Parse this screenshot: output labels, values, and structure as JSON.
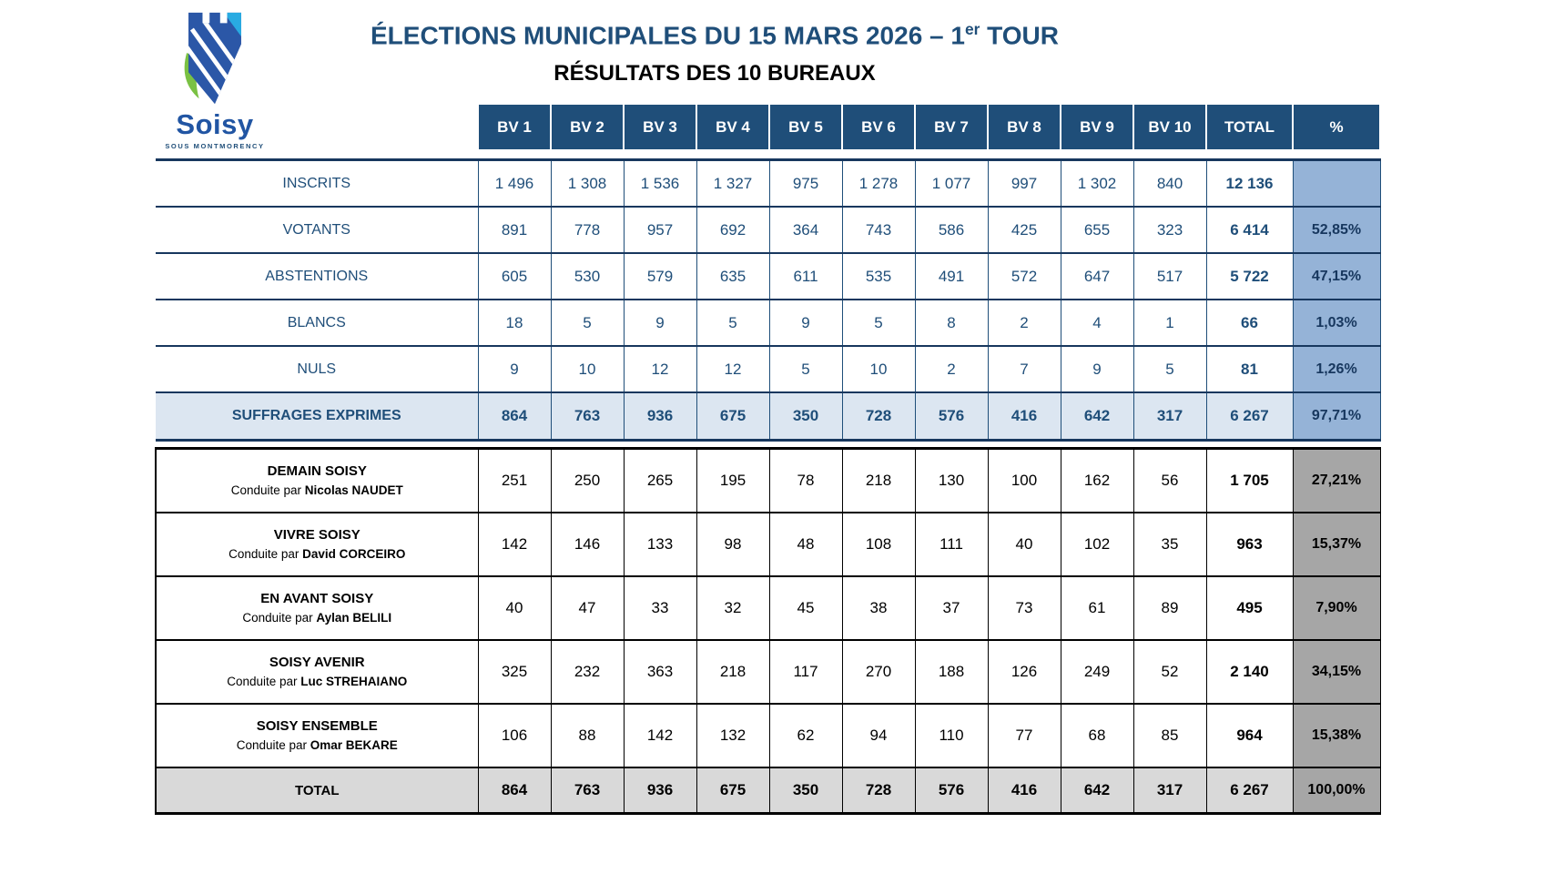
{
  "header": {
    "title_main": "ÉLECTIONS MUNICIPALES DU 15 MARS 2026 – 1",
    "title_sup": "er",
    "title_tail": " TOUR",
    "subtitle": "RÉSULTATS DES 10 BUREAUX"
  },
  "logo": {
    "name": "Soisy",
    "tagline": "SOUS MONTMORENCY",
    "colors": {
      "castle_blue": "#2B57A7",
      "accent_cyan": "#29ABE2",
      "leaf_green": "#7AC143",
      "wordmark_blue": "#2155A3"
    }
  },
  "colors": {
    "header_navy": "#1F4E79",
    "text_navy": "#17375E",
    "pct_blue": "#95B3D7",
    "suffrages_blue": "#DCE6F1",
    "pct_gray": "#A6A6A6",
    "total_gray": "#D9D9D9"
  },
  "table": {
    "columns": [
      "BV 1",
      "BV 2",
      "BV 3",
      "BV 4",
      "BV 5",
      "BV 6",
      "BV 7",
      "BV 8",
      "BV 9",
      "BV 10",
      "TOTAL",
      "%"
    ],
    "stats_rows": [
      {
        "label": "INSCRITS",
        "values": [
          "1 496",
          "1 308",
          "1 536",
          "1 327",
          "975",
          "1 278",
          "1 077",
          "997",
          "1 302",
          "840"
        ],
        "total": "12 136",
        "pct": ""
      },
      {
        "label": "VOTANTS",
        "values": [
          "891",
          "778",
          "957",
          "692",
          "364",
          "743",
          "586",
          "425",
          "655",
          "323"
        ],
        "total": "6 414",
        "pct": "52,85%"
      },
      {
        "label": "ABSTENTIONS",
        "values": [
          "605",
          "530",
          "579",
          "635",
          "611",
          "535",
          "491",
          "572",
          "647",
          "517"
        ],
        "total": "5 722",
        "pct": "47,15%"
      },
      {
        "label": "BLANCS",
        "values": [
          "18",
          "5",
          "9",
          "5",
          "9",
          "5",
          "8",
          "2",
          "4",
          "1"
        ],
        "total": "66",
        "pct": "1,03%"
      },
      {
        "label": "NULS",
        "values": [
          "9",
          "10",
          "12",
          "12",
          "5",
          "10",
          "2",
          "7",
          "9",
          "5"
        ],
        "total": "81",
        "pct": "1,26%"
      }
    ],
    "suffrages_row": {
      "label": "SUFFRAGES EXPRIMES",
      "values": [
        "864",
        "763",
        "936",
        "675",
        "350",
        "728",
        "576",
        "416",
        "642",
        "317"
      ],
      "total": "6 267",
      "pct": "97,71%"
    },
    "candidate_rows": [
      {
        "list": "DEMAIN SOISY",
        "prefix": "Conduite par",
        "candidate": "Nicolas NAUDET",
        "values": [
          "251",
          "250",
          "265",
          "195",
          "78",
          "218",
          "130",
          "100",
          "162",
          "56"
        ],
        "total": "1 705",
        "pct": "27,21%"
      },
      {
        "list": "VIVRE SOISY",
        "prefix": "Conduite par",
        "candidate": "David CORCEIRO",
        "values": [
          "142",
          "146",
          "133",
          "98",
          "48",
          "108",
          "111",
          "40",
          "102",
          "35"
        ],
        "total": "963",
        "pct": "15,37%"
      },
      {
        "list": "EN AVANT SOISY",
        "prefix": "Conduite par",
        "candidate": "Aylan BELILI",
        "values": [
          "40",
          "47",
          "33",
          "32",
          "45",
          "38",
          "37",
          "73",
          "61",
          "89"
        ],
        "total": "495",
        "pct": "7,90%"
      },
      {
        "list": "SOISY AVENIR",
        "prefix": "Conduite par",
        "candidate": "Luc STREHAIANO",
        "values": [
          "325",
          "232",
          "363",
          "218",
          "117",
          "270",
          "188",
          "126",
          "249",
          "52"
        ],
        "total": "2 140",
        "pct": "34,15%"
      },
      {
        "list": "SOISY ENSEMBLE",
        "prefix": "Conduite par",
        "candidate": "Omar BEKARE",
        "values": [
          "106",
          "88",
          "142",
          "132",
          "62",
          "94",
          "110",
          "77",
          "68",
          "85"
        ],
        "total": "964",
        "pct": "15,38%"
      }
    ],
    "total_row": {
      "label": "TOTAL",
      "values": [
        "864",
        "763",
        "936",
        "675",
        "350",
        "728",
        "576",
        "416",
        "642",
        "317"
      ],
      "total": "6 267",
      "pct": "100,00%"
    }
  }
}
